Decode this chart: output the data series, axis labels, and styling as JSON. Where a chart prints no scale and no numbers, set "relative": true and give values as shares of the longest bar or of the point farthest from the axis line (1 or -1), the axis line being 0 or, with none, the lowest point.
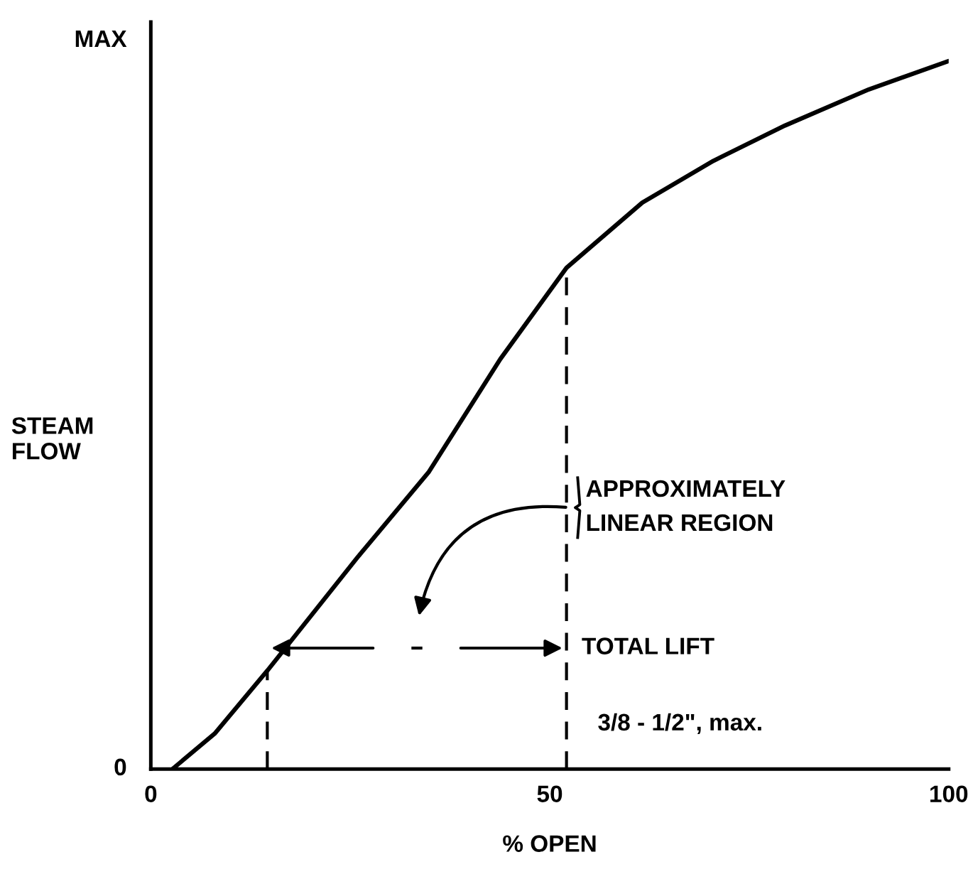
{
  "chart_data": {
    "type": "line",
    "xlabel": "% OPEN",
    "ylabel": "STEAM\nFLOW",
    "x": [
      2.7,
      8,
      14.6,
      25.9,
      34.8,
      43.8,
      52.1,
      61.6,
      70.5,
      79.5,
      90,
      100
    ],
    "series": [
      {
        "color": "#000000",
        "values": [
          0,
          0.05,
          0.139,
          0.299,
          0.419,
          0.579,
          0.708,
          0.8,
          0.859,
          0.909,
          0.96,
          1
        ]
      }
    ],
    "xlim": [
      0,
      100
    ],
    "xticks": [
      0,
      50,
      100
    ],
    "relative": true,
    "ref_lines": [
      {
        "axis": "x",
        "value": 14.6,
        "line_style": "dashed",
        "color": "#000000"
      },
      {
        "axis": "x",
        "value": 52.1,
        "line_style": "dashed",
        "color": "#000000"
      }
    ],
    "annotations": [
      "MAX",
      "0",
      "APPROXIMATELY\nLINEAR REGION",
      "TOTAL LIFT",
      "3/8 - 1/2\", max."
    ],
    "grid": false,
    "legend": false,
    "marker": "none",
    "line_style": "solid"
  }
}
